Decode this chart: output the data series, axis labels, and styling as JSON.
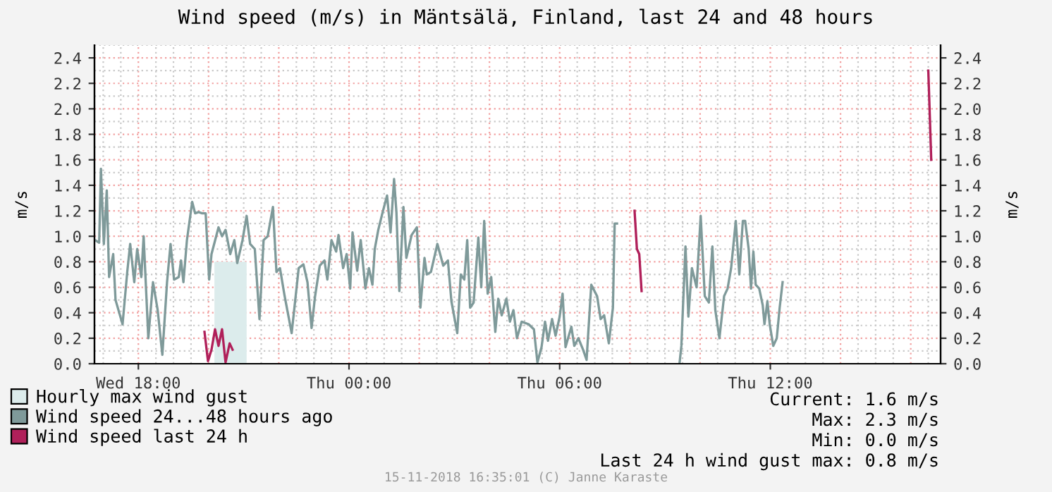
{
  "chart_data": {
    "type": "line",
    "title": "Wind speed (m/s) in Mäntsälä, Finland, last 24 and 48 hours",
    "ylabel": "m/s",
    "y2label": "m/s",
    "xlim": [
      "2018-11-14T16:45",
      "2018-11-15T16:51"
    ],
    "xticks": [
      {
        "value": "2018-11-14T18:00",
        "label": "Wed 18:00"
      },
      {
        "value": "2018-11-15T00:00",
        "label": "Thu 00:00"
      },
      {
        "value": "2018-11-15T06:00",
        "label": "Thu 06:00"
      },
      {
        "value": "2018-11-15T12:00",
        "label": "Thu 12:00"
      }
    ],
    "ylim": [
      0,
      2.5
    ],
    "yticks": [
      {
        "value": 0,
        "label": "0.0"
      },
      {
        "value": 0.2,
        "label": "0.2"
      },
      {
        "value": 0.4,
        "label": "0.4"
      },
      {
        "value": 0.6,
        "label": "0.6"
      },
      {
        "value": 0.8,
        "label": "0.8"
      },
      {
        "value": 1.0,
        "label": "1.0"
      },
      {
        "value": 1.2,
        "label": "1.2"
      },
      {
        "value": 1.4,
        "label": "1.4"
      },
      {
        "value": 1.6,
        "label": "1.6"
      },
      {
        "value": 1.8,
        "label": "1.8"
      },
      {
        "value": 2.0,
        "label": "2.0"
      },
      {
        "value": 2.2,
        "label": "2.2"
      },
      {
        "value": 2.4,
        "label": "2.4"
      }
    ],
    "y2lim": [
      0,
      2.5
    ],
    "y2ticks": [
      {
        "value": 0,
        "label": "0.0"
      },
      {
        "value": 0.2,
        "label": "0.2"
      },
      {
        "value": 0.4,
        "label": "0.4"
      },
      {
        "value": 0.6,
        "label": "0.6"
      },
      {
        "value": 0.8,
        "label": "0.8"
      },
      {
        "value": 1.0,
        "label": "1.0"
      },
      {
        "value": 1.2,
        "label": "1.2"
      },
      {
        "value": 1.4,
        "label": "1.4"
      },
      {
        "value": 1.6,
        "label": "1.6"
      },
      {
        "value": 1.8,
        "label": "1.8"
      },
      {
        "value": 2.0,
        "label": "2.0"
      },
      {
        "value": 2.2,
        "label": "2.2"
      },
      {
        "value": 2.4,
        "label": "2.4"
      }
    ],
    "grid": true,
    "legend": "bottom left",
    "series": [
      {
        "name": "Hourly max wind gust",
        "type": "area",
        "color": "#dcecec",
        "x": [
          "2018-11-14T20:10",
          "2018-11-14T21:05"
        ],
        "values": [
          0.8,
          0.8
        ]
      },
      {
        "name": "Wind speed 24...48 hours ago",
        "color": "#7f9a9a",
        "x": [
          "2018-11-14T16:46",
          "2018-11-14T16:53",
          "2018-11-14T16:56",
          "2018-11-14T17:01",
          "2018-11-14T17:06",
          "2018-11-14T17:10",
          "2018-11-14T17:17",
          "2018-11-14T17:21",
          "2018-11-14T17:33",
          "2018-11-14T17:41",
          "2018-11-14T17:46",
          "2018-11-14T17:53",
          "2018-11-14T17:58",
          "2018-11-14T18:05",
          "2018-11-14T18:09",
          "2018-11-14T18:17",
          "2018-11-14T18:25",
          "2018-11-14T18:33",
          "2018-11-14T18:41",
          "2018-11-14T18:49",
          "2018-11-14T18:55",
          "2018-11-14T19:01",
          "2018-11-14T19:09",
          "2018-11-14T19:13",
          "2018-11-14T19:17",
          "2018-11-14T19:23",
          "2018-11-14T19:32",
          "2018-11-14T19:37",
          "2018-11-14T19:43",
          "2018-11-14T19:49",
          "2018-11-14T19:55",
          "2018-11-14T20:01",
          "2018-11-14T20:05",
          "2018-11-14T20:17",
          "2018-11-14T20:23",
          "2018-11-14T20:29",
          "2018-11-14T20:37",
          "2018-11-14T20:44",
          "2018-11-14T20:49",
          "2018-11-14T20:58",
          "2018-11-14T21:05",
          "2018-11-14T21:11",
          "2018-11-14T21:19",
          "2018-11-14T21:27",
          "2018-11-14T21:34",
          "2018-11-14T21:41",
          "2018-11-14T21:50",
          "2018-11-14T21:56",
          "2018-11-14T22:02",
          "2018-11-14T22:10",
          "2018-11-14T22:22",
          "2018-11-14T22:34",
          "2018-11-14T22:42",
          "2018-11-14T22:49",
          "2018-11-14T22:56",
          "2018-11-14T23:02",
          "2018-11-14T23:10",
          "2018-11-14T23:18",
          "2018-11-14T23:23",
          "2018-11-14T23:30",
          "2018-11-14T23:38",
          "2018-11-14T23:42",
          "2018-11-14T23:50",
          "2018-11-14T23:56",
          "2018-11-15T00:02",
          "2018-11-15T00:06",
          "2018-11-15T00:14",
          "2018-11-15T00:20",
          "2018-11-15T00:28",
          "2018-11-15T00:34",
          "2018-11-15T00:40",
          "2018-11-15T00:44",
          "2018-11-15T00:50",
          "2018-11-15T00:57",
          "2018-11-15T01:05",
          "2018-11-15T01:11",
          "2018-11-15T01:17",
          "2018-11-15T01:21",
          "2018-11-15T01:26",
          "2018-11-15T01:33",
          "2018-11-15T01:38",
          "2018-11-15T01:47",
          "2018-11-15T01:56",
          "2018-11-15T02:02",
          "2018-11-15T02:09",
          "2018-11-15T02:13",
          "2018-11-15T02:20",
          "2018-11-15T02:31",
          "2018-11-15T02:41",
          "2018-11-15T02:49",
          "2018-11-15T02:55",
          "2018-11-15T03:05",
          "2018-11-15T03:11",
          "2018-11-15T03:17",
          "2018-11-15T03:22",
          "2018-11-15T03:27",
          "2018-11-15T03:33",
          "2018-11-15T03:41",
          "2018-11-15T03:46",
          "2018-11-15T03:51",
          "2018-11-15T03:57",
          "2018-11-15T04:03",
          "2018-11-15T04:10",
          "2018-11-15T04:15",
          "2018-11-15T04:21",
          "2018-11-15T04:29",
          "2018-11-15T04:35",
          "2018-11-15T04:41",
          "2018-11-15T04:47",
          "2018-11-15T04:55",
          "2018-11-15T05:07",
          "2018-11-15T05:16",
          "2018-11-15T05:22",
          "2018-11-15T05:29",
          "2018-11-15T05:35",
          "2018-11-15T05:40",
          "2018-11-15T05:47",
          "2018-11-15T05:53",
          "2018-11-15T06:00",
          "2018-11-15T06:05",
          "2018-11-15T06:10",
          "2018-11-15T06:20",
          "2018-11-15T06:25",
          "2018-11-15T06:32",
          "2018-11-15T06:40",
          "2018-11-15T06:46",
          "2018-11-15T06:54",
          "2018-11-15T07:04",
          "2018-11-15T07:10",
          "2018-11-15T07:16",
          "2018-11-15T07:24",
          "2018-11-15T07:31",
          "2018-11-15T07:34",
          "2018-11-15T07:38",
          "2018-11-15T08:30",
          "2018-11-15T09:25",
          "2018-11-15T09:28",
          "2018-11-15T09:35",
          "2018-11-15T09:40",
          "2018-11-15T09:46",
          "2018-11-15T09:54",
          "2018-11-15T10:01",
          "2018-11-15T10:08",
          "2018-11-15T10:15",
          "2018-11-15T10:21",
          "2018-11-15T10:26",
          "2018-11-15T10:33",
          "2018-11-15T10:41",
          "2018-11-15T10:47",
          "2018-11-15T10:53",
          "2018-11-15T11:01",
          "2018-11-15T11:07",
          "2018-11-15T11:13",
          "2018-11-15T11:17",
          "2018-11-15T11:23",
          "2018-11-15T11:27",
          "2018-11-15T11:31",
          "2018-11-15T11:35",
          "2018-11-15T11:41",
          "2018-11-15T11:47",
          "2018-11-15T11:50",
          "2018-11-15T11:55",
          "2018-11-15T11:59",
          "2018-11-15T12:05",
          "2018-11-15T12:11",
          "2018-11-15T12:16",
          "2018-11-15T12:21"
        ],
        "values": [
          0.97,
          0.95,
          1.53,
          0.94,
          1.36,
          0.68,
          0.86,
          0.5,
          0.31,
          0.72,
          0.94,
          0.64,
          0.9,
          0.68,
          1.0,
          0.2,
          0.64,
          0.42,
          0.07,
          0.64,
          0.94,
          0.66,
          0.68,
          0.81,
          0.64,
          0.97,
          1.27,
          1.18,
          1.19,
          1.18,
          1.18,
          0.66,
          0.86,
          1.07,
          1.0,
          1.05,
          0.86,
          0.97,
          0.79,
          0.97,
          1.16,
          0.94,
          0.9,
          0.35,
          0.97,
          1.0,
          1.23,
          0.72,
          0.75,
          0.53,
          0.24,
          0.75,
          0.78,
          0.64,
          0.28,
          0.53,
          0.77,
          0.81,
          0.66,
          0.97,
          0.88,
          1.01,
          0.75,
          0.86,
          0.59,
          1.03,
          0.73,
          0.97,
          0.59,
          0.75,
          0.62,
          0.9,
          1.05,
          1.18,
          1.32,
          1.03,
          1.45,
          1.19,
          0.57,
          1.23,
          0.83,
          1.01,
          1.07,
          0.44,
          0.83,
          0.7,
          0.72,
          0.94,
          0.77,
          0.81,
          0.49,
          0.24,
          0.7,
          0.66,
          0.97,
          0.44,
          0.48,
          0.99,
          0.6,
          1.12,
          0.55,
          0.68,
          0.25,
          0.51,
          0.38,
          0.51,
          0.33,
          0.42,
          0.2,
          0.33,
          0.31,
          0.27,
          0.01,
          0.13,
          0.33,
          0.18,
          0.35,
          0.22,
          0.37,
          0.55,
          0.13,
          0.29,
          0.14,
          0.2,
          0.11,
          0.03,
          0.62,
          0.53,
          0.35,
          0.38,
          0.16,
          0.44,
          1.1,
          1.1,
          null,
          0.01,
          0.14,
          0.92,
          0.37,
          0.75,
          0.6,
          1.16,
          0.53,
          0.48,
          0.92,
          0.42,
          0.2,
          0.53,
          0.59,
          0.75,
          1.12,
          0.7,
          1.12,
          1.12,
          0.9,
          0.59,
          0.88,
          0.62,
          0.59,
          0.46,
          0.31,
          0.49,
          0.31,
          0.14,
          0.2,
          0.44,
          0.64
        ]
      },
      {
        "name": "Wind speed last 24 h",
        "color": "#b0205a",
        "x": [
          "2018-11-14T19:53",
          "2018-11-14T19:59",
          "2018-11-14T20:05",
          "2018-11-14T20:11",
          "2018-11-14T20:17",
          "2018-11-14T20:23",
          "2018-11-14T20:29",
          "2018-11-14T20:36",
          "2018-11-14T20:41",
          "2018-11-15T07:30",
          "2018-11-15T08:08",
          "2018-11-15T08:12",
          "2018-11-15T08:16",
          "2018-11-15T08:20",
          "2018-11-15T12:30",
          "2018-11-15T16:30",
          "2018-11-15T16:35"
        ],
        "values": [
          0.25,
          0.02,
          0.11,
          0.27,
          0.14,
          0.27,
          0.01,
          0.16,
          0.11,
          null,
          1.2,
          0.9,
          0.86,
          0.57,
          null,
          2.3,
          1.6
        ]
      }
    ],
    "annotations": [
      "Current: 1.6 m/s",
      "Max: 2.3 m/s",
      "Min: 0.0 m/s",
      "Last 24 h wind gust max: 0.8 m/s",
      "15-11-2018 16:35:01 (C) Janne Karaste"
    ]
  }
}
